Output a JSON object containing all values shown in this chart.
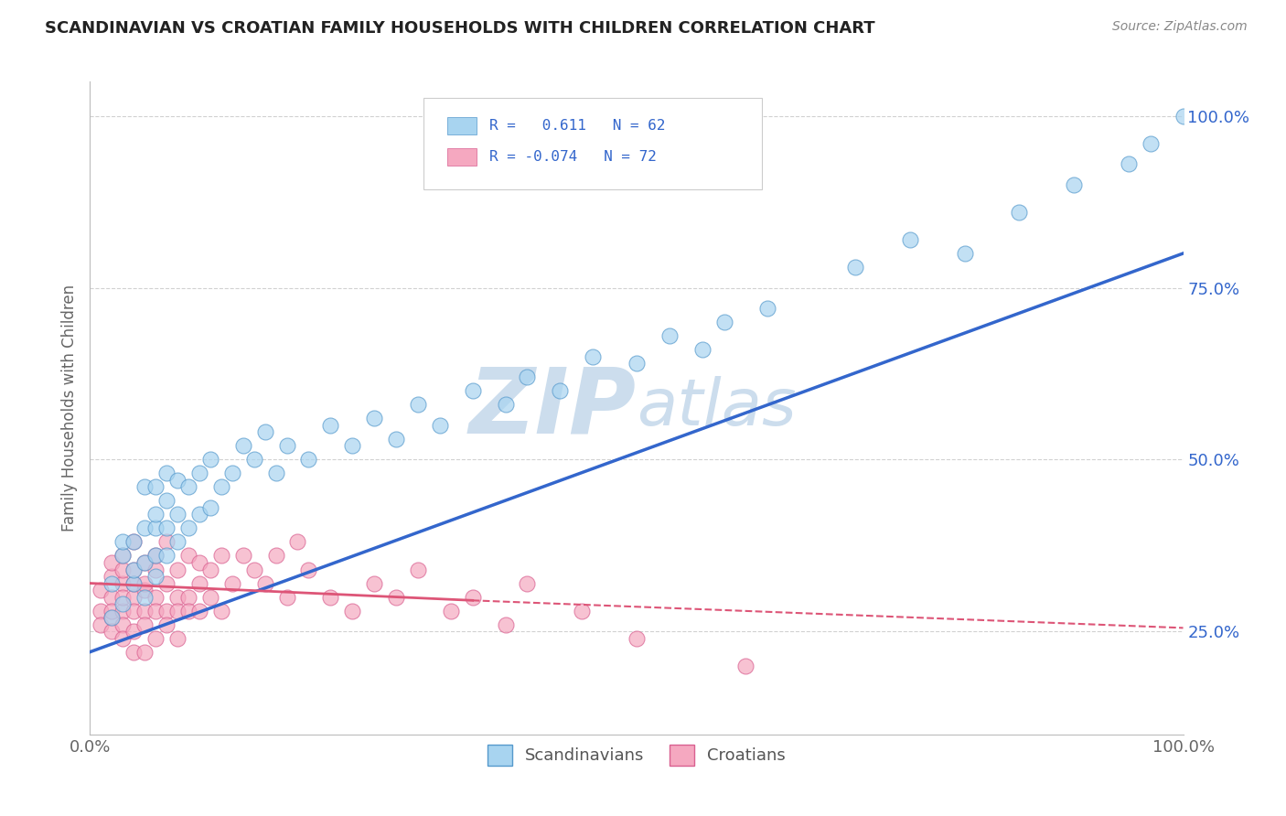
{
  "title": "SCANDINAVIAN VS CROATIAN FAMILY HOUSEHOLDS WITH CHILDREN CORRELATION CHART",
  "source_text": "Source: ZipAtlas.com",
  "ylabel": "Family Households with Children",
  "scand_color": "#a8d4f0",
  "scand_edge_color": "#5599cc",
  "croat_color": "#f5a8c0",
  "croat_edge_color": "#d96090",
  "scand_line_color": "#3366cc",
  "croat_line_color": "#dd5577",
  "watermark_color": "#ccdded",
  "background_color": "#ffffff",
  "grid_color": "#cccccc",
  "legend_r1": "R =   0.611   N = 62",
  "legend_r2": "R = -0.074   N = 72",
  "scand_x": [
    0.02,
    0.02,
    0.03,
    0.03,
    0.03,
    0.04,
    0.04,
    0.04,
    0.05,
    0.05,
    0.05,
    0.05,
    0.06,
    0.06,
    0.06,
    0.06,
    0.06,
    0.07,
    0.07,
    0.07,
    0.07,
    0.08,
    0.08,
    0.08,
    0.09,
    0.09,
    0.1,
    0.1,
    0.11,
    0.11,
    0.12,
    0.13,
    0.14,
    0.15,
    0.16,
    0.17,
    0.18,
    0.2,
    0.22,
    0.24,
    0.26,
    0.28,
    0.3,
    0.32,
    0.35,
    0.38,
    0.4,
    0.43,
    0.46,
    0.5,
    0.53,
    0.56,
    0.58,
    0.62,
    0.7,
    0.75,
    0.8,
    0.85,
    0.9,
    0.95,
    0.97,
    1.0
  ],
  "scand_y": [
    0.27,
    0.32,
    0.29,
    0.36,
    0.38,
    0.32,
    0.34,
    0.38,
    0.3,
    0.35,
    0.4,
    0.46,
    0.33,
    0.36,
    0.4,
    0.42,
    0.46,
    0.36,
    0.4,
    0.44,
    0.48,
    0.38,
    0.42,
    0.47,
    0.4,
    0.46,
    0.42,
    0.48,
    0.43,
    0.5,
    0.46,
    0.48,
    0.52,
    0.5,
    0.54,
    0.48,
    0.52,
    0.5,
    0.55,
    0.52,
    0.56,
    0.53,
    0.58,
    0.55,
    0.6,
    0.58,
    0.62,
    0.6,
    0.65,
    0.64,
    0.68,
    0.66,
    0.7,
    0.72,
    0.78,
    0.82,
    0.8,
    0.86,
    0.9,
    0.93,
    0.96,
    1.0
  ],
  "croat_x": [
    0.01,
    0.01,
    0.01,
    0.02,
    0.02,
    0.02,
    0.02,
    0.02,
    0.02,
    0.03,
    0.03,
    0.03,
    0.03,
    0.03,
    0.03,
    0.03,
    0.04,
    0.04,
    0.04,
    0.04,
    0.04,
    0.04,
    0.04,
    0.05,
    0.05,
    0.05,
    0.05,
    0.05,
    0.05,
    0.06,
    0.06,
    0.06,
    0.06,
    0.06,
    0.07,
    0.07,
    0.07,
    0.07,
    0.08,
    0.08,
    0.08,
    0.08,
    0.09,
    0.09,
    0.09,
    0.1,
    0.1,
    0.1,
    0.11,
    0.11,
    0.12,
    0.12,
    0.13,
    0.14,
    0.15,
    0.16,
    0.17,
    0.18,
    0.19,
    0.2,
    0.22,
    0.24,
    0.26,
    0.28,
    0.3,
    0.33,
    0.35,
    0.38,
    0.4,
    0.45,
    0.5,
    0.6
  ],
  "croat_y": [
    0.28,
    0.31,
    0.26,
    0.33,
    0.3,
    0.27,
    0.35,
    0.28,
    0.25,
    0.32,
    0.34,
    0.28,
    0.3,
    0.26,
    0.36,
    0.24,
    0.3,
    0.34,
    0.28,
    0.32,
    0.25,
    0.38,
    0.22,
    0.31,
    0.35,
    0.28,
    0.32,
    0.26,
    0.22,
    0.34,
    0.3,
    0.28,
    0.36,
    0.24,
    0.38,
    0.32,
    0.28,
    0.26,
    0.34,
    0.3,
    0.28,
    0.24,
    0.36,
    0.3,
    0.28,
    0.35,
    0.32,
    0.28,
    0.34,
    0.3,
    0.36,
    0.28,
    0.32,
    0.36,
    0.34,
    0.32,
    0.36,
    0.3,
    0.38,
    0.34,
    0.3,
    0.28,
    0.32,
    0.3,
    0.34,
    0.28,
    0.3,
    0.26,
    0.32,
    0.28,
    0.24,
    0.2
  ],
  "xlim": [
    0.0,
    1.0
  ],
  "ylim": [
    0.1,
    1.05
  ],
  "scand_trend_x0": 0.0,
  "scand_trend_x1": 1.0,
  "scand_trend_y0": 0.22,
  "scand_trend_y1": 0.8,
  "croat_trend_solid_x0": 0.0,
  "croat_trend_solid_x1": 0.35,
  "croat_trend_solid_y0": 0.32,
  "croat_trend_solid_y1": 0.295,
  "croat_trend_dash_x0": 0.35,
  "croat_trend_dash_x1": 1.0,
  "croat_trend_dash_y0": 0.295,
  "croat_trend_dash_y1": 0.255
}
